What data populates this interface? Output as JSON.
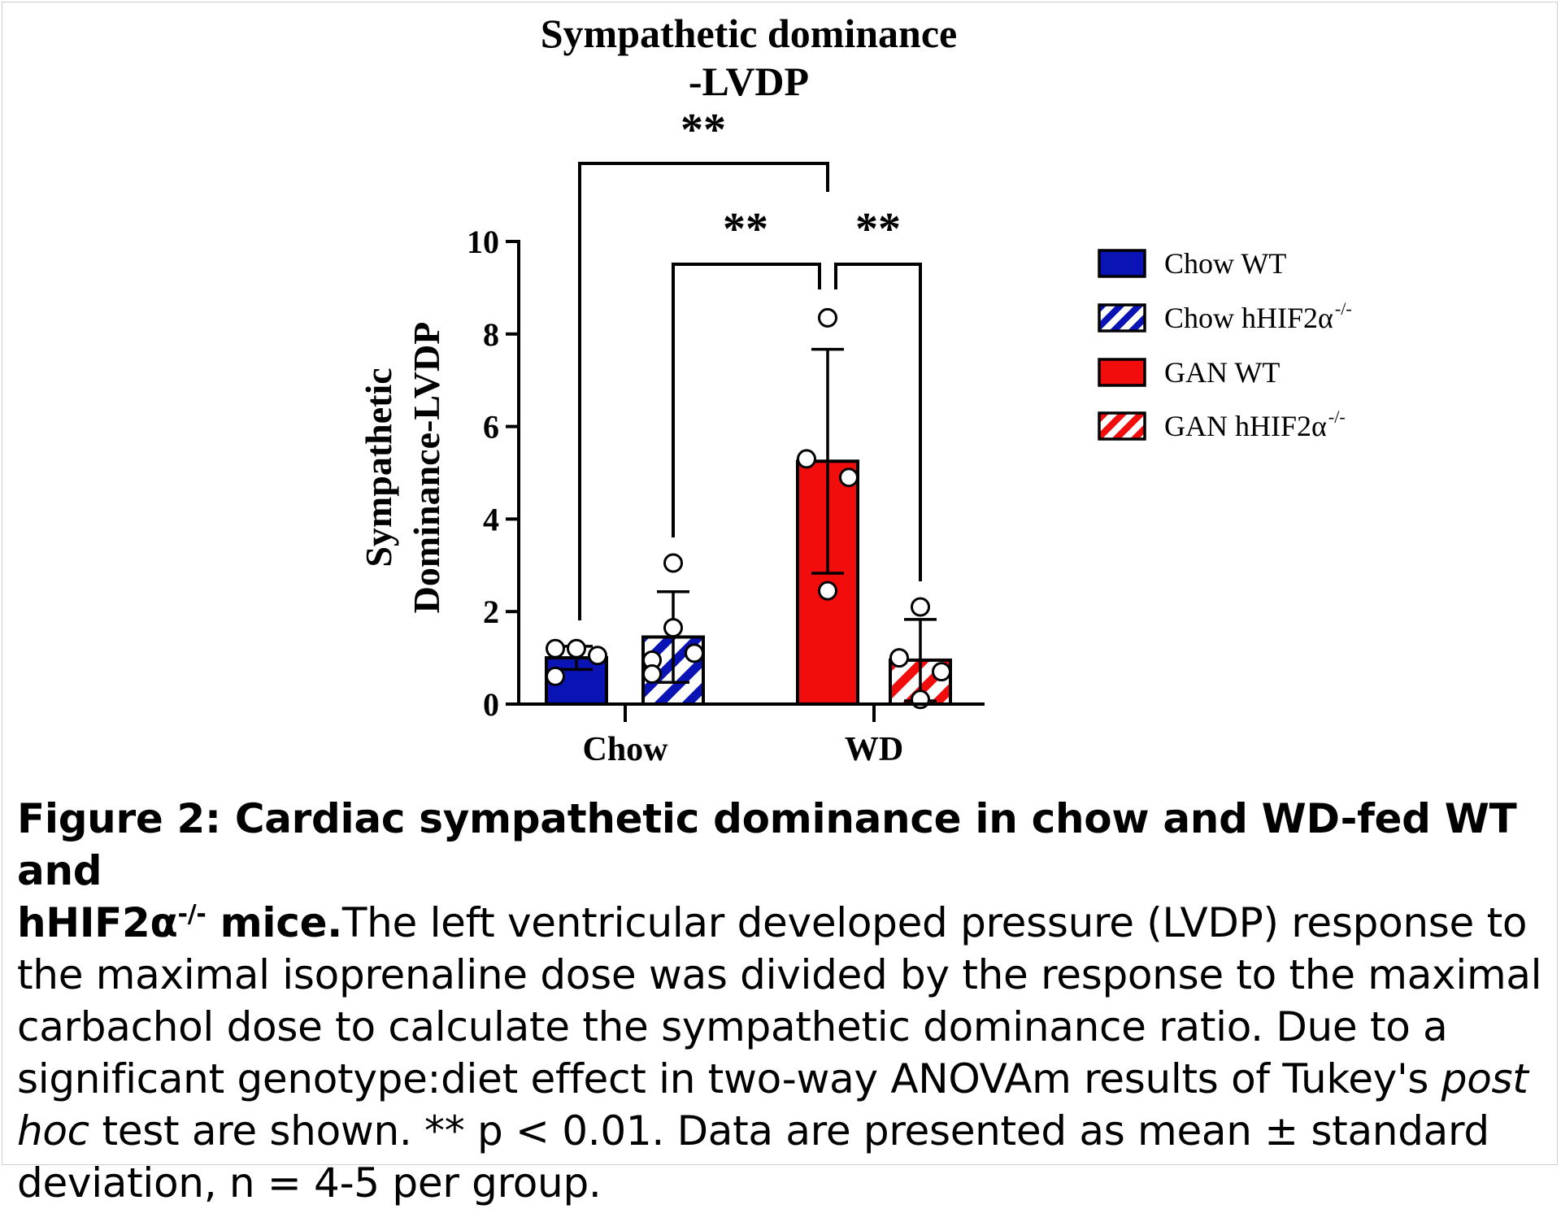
{
  "chart_data": {
    "type": "bar",
    "title_line1": "Sympathetic dominance",
    "title_line2": "-LVDP",
    "ylabel_line1": "Sympathetic",
    "ylabel_line2": "Dominance-LVDP",
    "ylim": [
      0,
      10
    ],
    "yticks": [
      "0",
      "2",
      "4",
      "6",
      "8",
      "10"
    ],
    "categories": [
      "Chow",
      "WD"
    ],
    "series": [
      {
        "name": "Chow WT",
        "category": "Chow",
        "mean": 1.0,
        "sd": 0.25,
        "color": "#0a14b4",
        "pattern": "solid",
        "points": [
          1.2,
          1.2,
          1.05,
          0.6
        ]
      },
      {
        "name": "Chow hHIF2α",
        "sup": "-/-",
        "category": "Chow",
        "mean": 1.45,
        "sd": 0.98,
        "color": "#0a14b4",
        "pattern": "hatched",
        "points": [
          3.05,
          1.65,
          1.1,
          0.95,
          0.65
        ]
      },
      {
        "name": "GAN WT",
        "category": "WD",
        "mean": 5.25,
        "sd": 2.42,
        "color": "#f20d0d",
        "pattern": "solid",
        "points": [
          8.35,
          5.3,
          4.9,
          2.45
        ]
      },
      {
        "name": "GAN hHIF2α",
        "sup": "-/-",
        "category": "WD",
        "mean": 0.95,
        "sd": 0.88,
        "color": "#f20d0d",
        "pattern": "hatched",
        "points": [
          2.1,
          1.0,
          0.7,
          0.1
        ]
      }
    ],
    "significance": [
      {
        "from": "Chow WT",
        "to": "GAN WT",
        "label": "**"
      },
      {
        "from": "Chow hHIF2α",
        "to": "GAN WT",
        "label": "**"
      },
      {
        "from": "GAN WT",
        "to": "GAN hHIF2α",
        "label": "**"
      }
    ],
    "legend_position": "right"
  },
  "caption": {
    "bold_part1": "Figure 2: Cardiac sympathetic dominance in chow and WD-fed WT and",
    "bold_part2": "hHIF2α",
    "bold_sup": "-/-",
    "bold_part3": " mice.",
    "text1": "The left ventricular developed pressure (LVDP) response to the maximal isoprenaline dose was divided by the response to the maximal carbachol dose to calculate the sympathetic dominance ratio. Due to a significant genotype:diet effect in two-way ANOVAm results of Tukey's ",
    "italic": "post hoc",
    "text2": " test are shown. ** p < 0.01. Data are presented as mean ± standard deviation, n = 4-5 per group."
  }
}
